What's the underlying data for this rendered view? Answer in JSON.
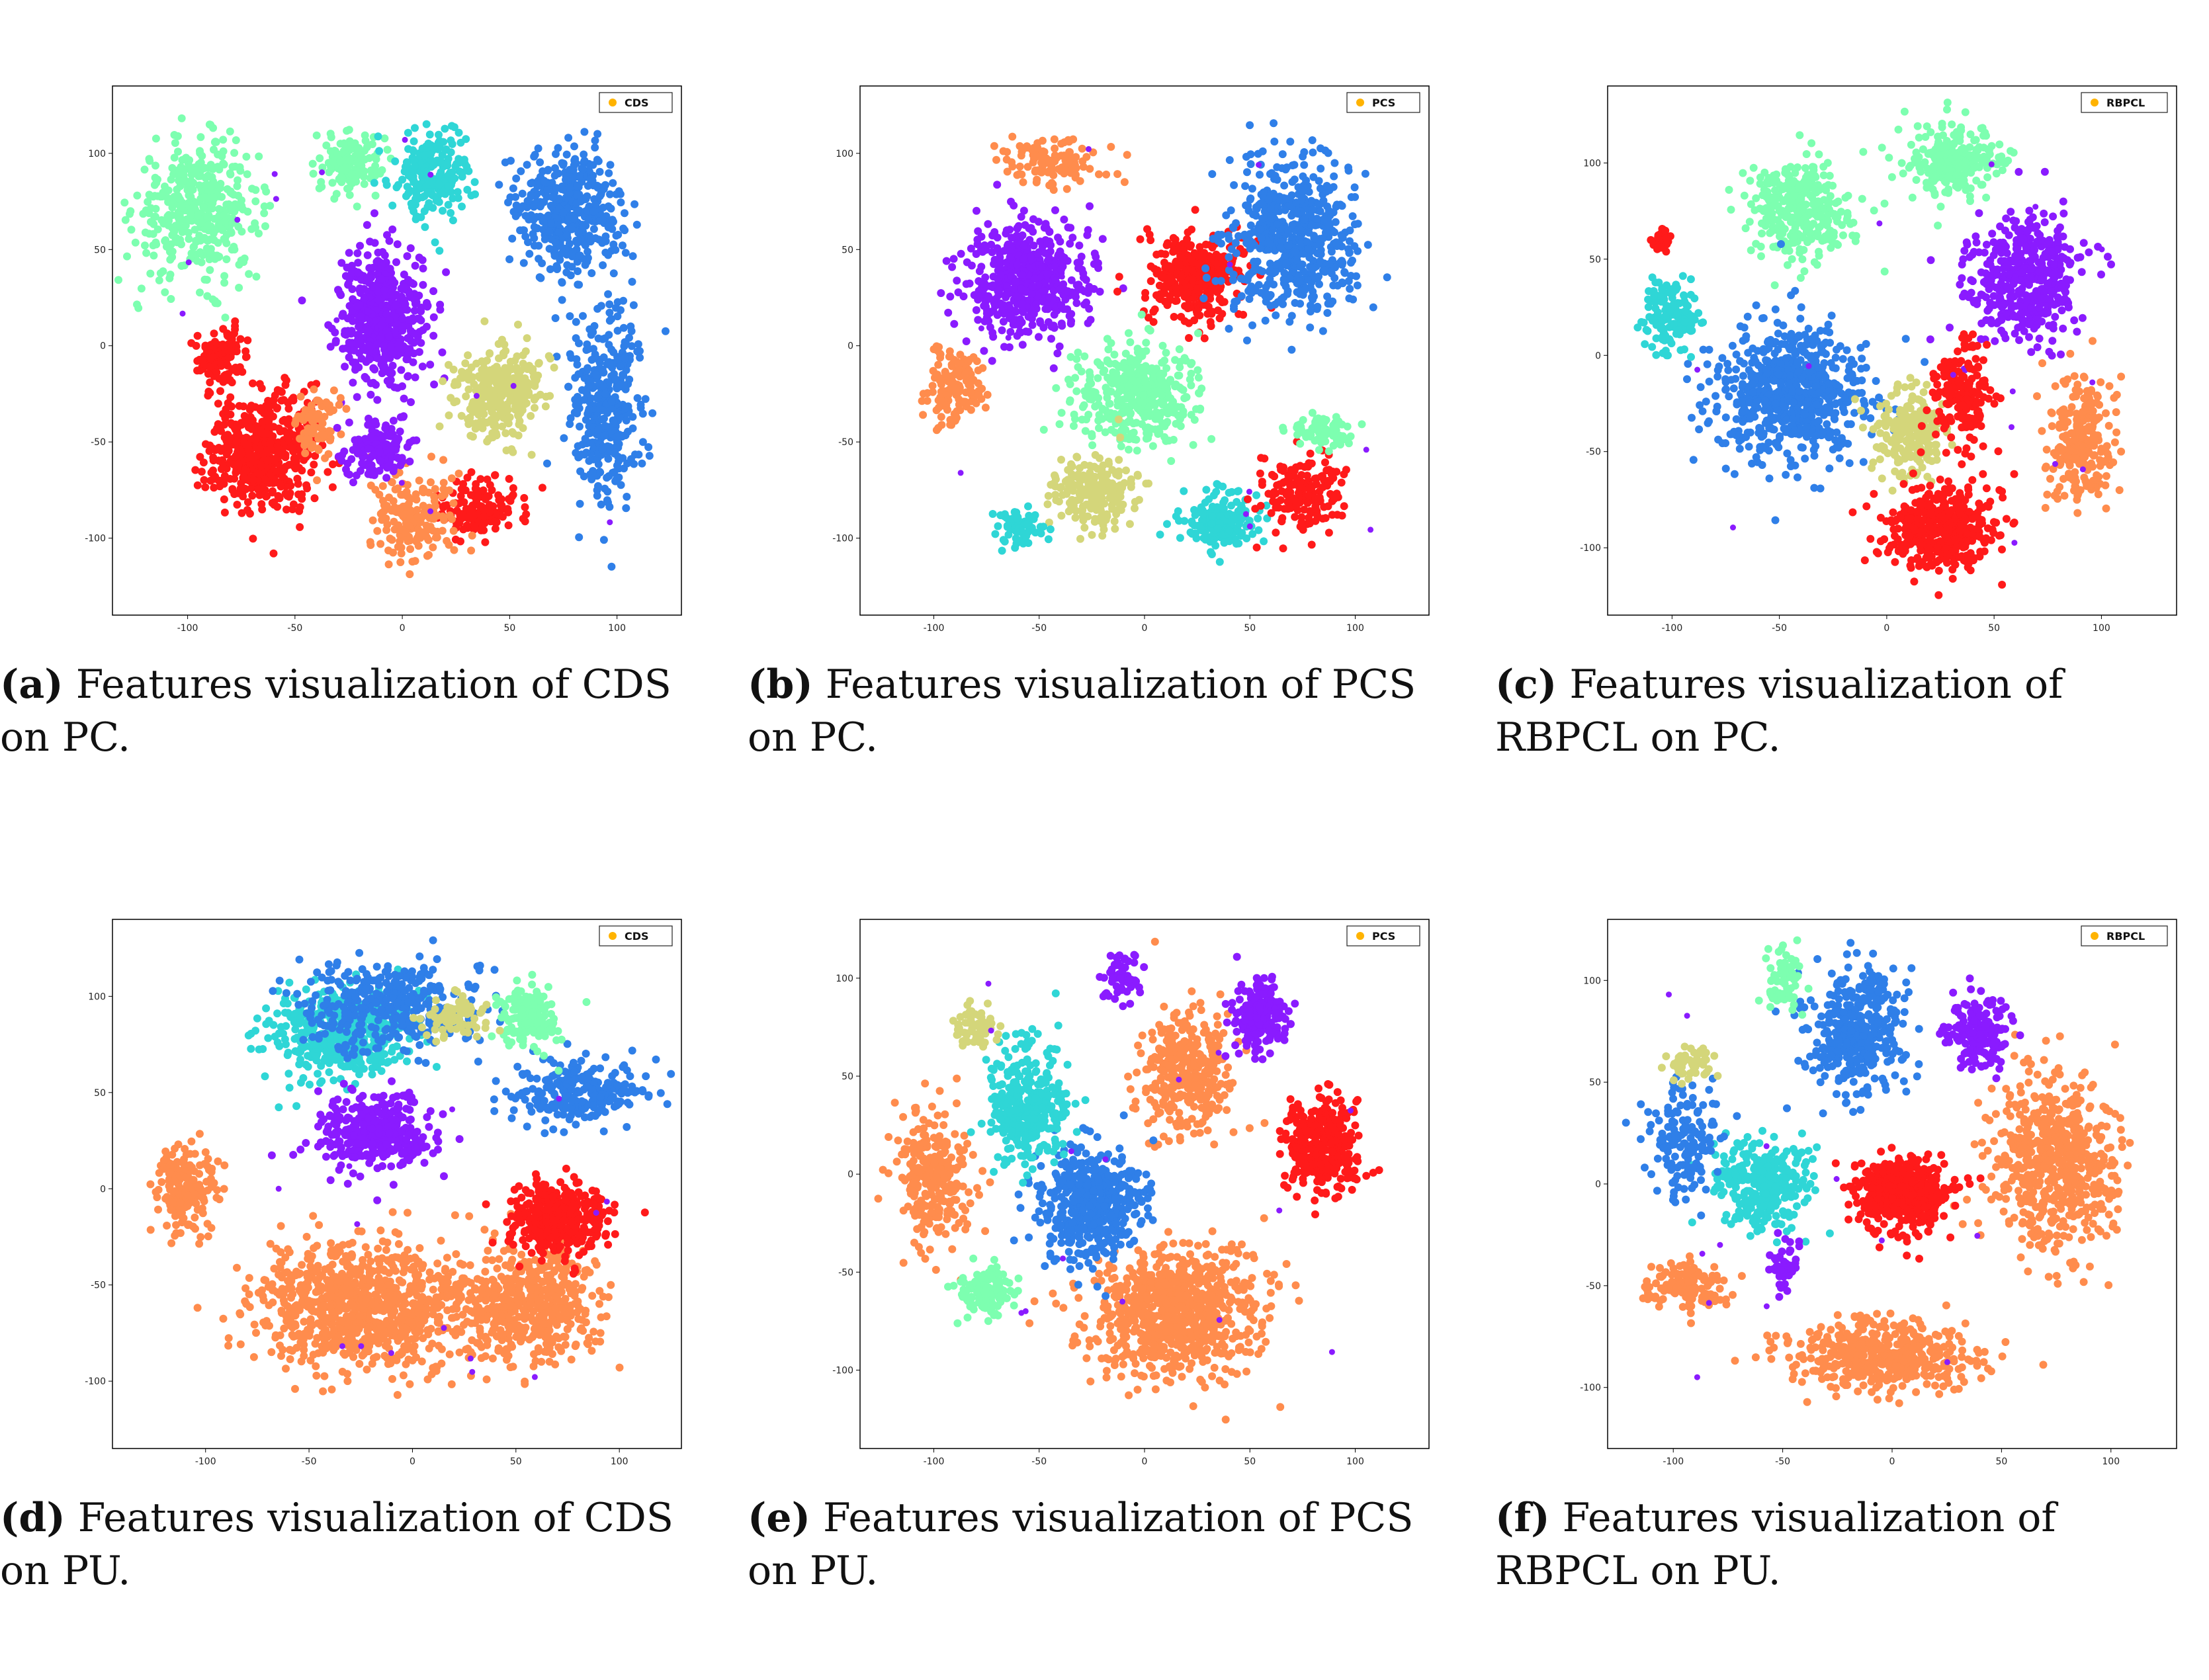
{
  "figure": {
    "panels": [
      {
        "tag": "a",
        "method": "CDS",
        "dataset": "PC",
        "caption_tag": "(a)",
        "caption_text": " Features visualization of CDS on PC."
      },
      {
        "tag": "b",
        "method": "PCS",
        "dataset": "PC",
        "caption_tag": "(b)",
        "caption_text": " Features visualization of PCS on PC."
      },
      {
        "tag": "c",
        "method": "RBPCL",
        "dataset": "PC",
        "caption_tag": "(c)",
        "caption_text": " Features visualization of RBPCL on PC."
      },
      {
        "tag": "d",
        "method": "CDS",
        "dataset": "PU",
        "caption_tag": "(d)",
        "caption_text": " Features visualization of CDS on PU."
      },
      {
        "tag": "e",
        "method": "PCS",
        "dataset": "PU",
        "caption_tag": "(e)",
        "caption_text": " Features visualization of PCS on PU."
      },
      {
        "tag": "f",
        "method": "RBPCL",
        "dataset": "PU",
        "caption_tag": "(f)",
        "caption_text": " Features visualization of RBPCL on PU."
      }
    ]
  },
  "colors": {
    "red": "#ff1a1a",
    "orange": "#ff8c4d",
    "violet": "#8a1bff",
    "blue": "#2f7fe8",
    "cyan": "#2fd6d6",
    "aqua": "#7dffb0",
    "khaki": "#d4d67a",
    "legend_dot": "#ffb300"
  },
  "chart_data": [
    {
      "type": "scatter",
      "subtype": "t-SNE embedding",
      "legend": "CDS",
      "xlim": [
        -135,
        130
      ],
      "ylim": [
        -140,
        135
      ],
      "xticks": [
        -100,
        -50,
        0,
        50,
        100
      ],
      "yticks": [
        -100,
        -50,
        0,
        50,
        100
      ],
      "clusters": [
        {
          "color": "aqua",
          "cx": -95,
          "cy": 70,
          "sx": 26,
          "sy": 32,
          "n": 420
        },
        {
          "color": "aqua",
          "cx": -25,
          "cy": 95,
          "sx": 14,
          "sy": 14,
          "n": 140
        },
        {
          "color": "cyan",
          "cx": 15,
          "cy": 90,
          "sx": 16,
          "sy": 22,
          "n": 220
        },
        {
          "color": "blue",
          "cx": 78,
          "cy": 70,
          "sx": 22,
          "sy": 28,
          "n": 430
        },
        {
          "color": "blue",
          "cx": 95,
          "cy": -30,
          "sx": 16,
          "sy": 48,
          "n": 360
        },
        {
          "color": "violet",
          "cx": -10,
          "cy": 15,
          "sx": 18,
          "sy": 30,
          "n": 520
        },
        {
          "color": "khaki",
          "cx": 45,
          "cy": -25,
          "sx": 18,
          "sy": 22,
          "n": 300
        },
        {
          "color": "red",
          "cx": -65,
          "cy": -55,
          "sx": 22,
          "sy": 28,
          "n": 520
        },
        {
          "color": "red",
          "cx": -85,
          "cy": -5,
          "sx": 12,
          "sy": 12,
          "n": 120
        },
        {
          "color": "red",
          "cx": 35,
          "cy": -85,
          "sx": 18,
          "sy": 14,
          "n": 140
        },
        {
          "color": "orange",
          "cx": 5,
          "cy": -90,
          "sx": 18,
          "sy": 20,
          "n": 180
        },
        {
          "color": "orange",
          "cx": -40,
          "cy": -40,
          "sx": 10,
          "sy": 14,
          "n": 80
        },
        {
          "color": "violet",
          "cx": -10,
          "cy": -55,
          "sx": 14,
          "sy": 14,
          "n": 150
        }
      ]
    },
    {
      "type": "scatter",
      "subtype": "t-SNE embedding",
      "legend": "PCS",
      "xlim": [
        -135,
        135
      ],
      "ylim": [
        -140,
        135
      ],
      "xticks": [
        -100,
        -50,
        0,
        50,
        100
      ],
      "yticks": [
        -100,
        -50,
        0,
        50,
        100
      ],
      "clusters": [
        {
          "color": "violet",
          "cx": -55,
          "cy": 35,
          "sx": 26,
          "sy": 28,
          "n": 520
        },
        {
          "color": "red",
          "cx": 25,
          "cy": 35,
          "sx": 20,
          "sy": 20,
          "n": 360
        },
        {
          "color": "blue",
          "cx": 70,
          "cy": 55,
          "sx": 28,
          "sy": 38,
          "n": 560
        },
        {
          "color": "aqua",
          "cx": -5,
          "cy": -25,
          "sx": 26,
          "sy": 22,
          "n": 420
        },
        {
          "color": "khaki",
          "cx": -25,
          "cy": -75,
          "sx": 18,
          "sy": 16,
          "n": 220
        },
        {
          "color": "cyan",
          "cx": 35,
          "cy": -90,
          "sx": 16,
          "sy": 14,
          "n": 170
        },
        {
          "color": "cyan",
          "cx": -60,
          "cy": -95,
          "sx": 10,
          "sy": 8,
          "n": 70
        },
        {
          "color": "red",
          "cx": 75,
          "cy": -75,
          "sx": 18,
          "sy": 16,
          "n": 180
        },
        {
          "color": "orange",
          "cx": -90,
          "cy": -20,
          "sx": 12,
          "sy": 22,
          "n": 140
        },
        {
          "color": "orange",
          "cx": -45,
          "cy": 95,
          "sx": 20,
          "sy": 12,
          "n": 120
        },
        {
          "color": "aqua",
          "cx": 85,
          "cy": -45,
          "sx": 14,
          "sy": 8,
          "n": 80
        }
      ]
    },
    {
      "type": "scatter",
      "subtype": "t-SNE embedding",
      "legend": "RBPCL",
      "xlim": [
        -130,
        135
      ],
      "ylim": [
        -135,
        140
      ],
      "xticks": [
        -100,
        -50,
        0,
        50,
        100
      ],
      "yticks": [
        -100,
        -50,
        0,
        50,
        100
      ],
      "clusters": [
        {
          "color": "aqua",
          "cx": -40,
          "cy": 75,
          "sx": 22,
          "sy": 24,
          "n": 330
        },
        {
          "color": "aqua",
          "cx": 30,
          "cy": 100,
          "sx": 20,
          "sy": 18,
          "n": 250
        },
        {
          "color": "violet",
          "cx": 65,
          "cy": 40,
          "sx": 24,
          "sy": 30,
          "n": 460
        },
        {
          "color": "blue",
          "cx": -45,
          "cy": -20,
          "sx": 32,
          "sy": 32,
          "n": 680
        },
        {
          "color": "cyan",
          "cx": -100,
          "cy": 20,
          "sx": 12,
          "sy": 18,
          "n": 140
        },
        {
          "color": "khaki",
          "cx": 10,
          "cy": -40,
          "sx": 14,
          "sy": 20,
          "n": 220
        },
        {
          "color": "red",
          "cx": 35,
          "cy": -20,
          "sx": 12,
          "sy": 24,
          "n": 180
        },
        {
          "color": "red",
          "cx": 25,
          "cy": -90,
          "sx": 24,
          "sy": 20,
          "n": 420
        },
        {
          "color": "orange",
          "cx": 90,
          "cy": -45,
          "sx": 14,
          "sy": 32,
          "n": 260
        },
        {
          "color": "red",
          "cx": -105,
          "cy": 60,
          "sx": 4,
          "sy": 5,
          "n": 40
        }
      ]
    },
    {
      "type": "scatter",
      "subtype": "t-SNE embedding",
      "legend": "CDS",
      "xlim": [
        -145,
        130
      ],
      "ylim": [
        -135,
        140
      ],
      "xticks": [
        -100,
        -50,
        0,
        50,
        100
      ],
      "yticks": [
        -100,
        -50,
        0,
        50,
        100
      ],
      "clusters": [
        {
          "color": "orange",
          "cx": -25,
          "cy": -60,
          "sx": 45,
          "sy": 30,
          "n": 900
        },
        {
          "color": "orange",
          "cx": 55,
          "cy": -60,
          "sx": 30,
          "sy": 28,
          "n": 500
        },
        {
          "color": "orange",
          "cx": -110,
          "cy": 0,
          "sx": 14,
          "sy": 22,
          "n": 180
        },
        {
          "color": "red",
          "cx": 70,
          "cy": -15,
          "sx": 22,
          "sy": 16,
          "n": 380
        },
        {
          "color": "cyan",
          "cx": -35,
          "cy": 80,
          "sx": 30,
          "sy": 22,
          "n": 420
        },
        {
          "color": "violet",
          "cx": -20,
          "cy": 30,
          "sx": 26,
          "sy": 18,
          "n": 320
        },
        {
          "color": "blue",
          "cx": -10,
          "cy": 95,
          "sx": 40,
          "sy": 22,
          "n": 380
        },
        {
          "color": "blue",
          "cx": 80,
          "cy": 50,
          "sx": 30,
          "sy": 14,
          "n": 260
        },
        {
          "color": "aqua",
          "cx": 55,
          "cy": 90,
          "sx": 14,
          "sy": 16,
          "n": 160
        },
        {
          "color": "khaki",
          "cx": 20,
          "cy": 90,
          "sx": 14,
          "sy": 10,
          "n": 80
        }
      ]
    },
    {
      "type": "scatter",
      "subtype": "t-SNE embedding",
      "legend": "PCS",
      "xlim": [
        -135,
        135
      ],
      "ylim": [
        -140,
        130
      ],
      "xticks": [
        -100,
        -50,
        0,
        50,
        100
      ],
      "yticks": [
        -100,
        -50,
        0,
        50,
        100
      ],
      "clusters": [
        {
          "color": "orange",
          "cx": 15,
          "cy": -70,
          "sx": 36,
          "sy": 30,
          "n": 800
        },
        {
          "color": "orange",
          "cx": 20,
          "cy": 50,
          "sx": 20,
          "sy": 28,
          "n": 340
        },
        {
          "color": "orange",
          "cx": -100,
          "cy": 0,
          "sx": 16,
          "sy": 30,
          "n": 260
        },
        {
          "color": "blue",
          "cx": -25,
          "cy": -15,
          "sx": 22,
          "sy": 26,
          "n": 480
        },
        {
          "color": "cyan",
          "cx": -55,
          "cy": 35,
          "sx": 16,
          "sy": 28,
          "n": 340
        },
        {
          "color": "red",
          "cx": 85,
          "cy": 15,
          "sx": 16,
          "sy": 22,
          "n": 360
        },
        {
          "color": "violet",
          "cx": 55,
          "cy": 80,
          "sx": 12,
          "sy": 18,
          "n": 200
        },
        {
          "color": "violet",
          "cx": -10,
          "cy": 100,
          "sx": 8,
          "sy": 10,
          "n": 60
        },
        {
          "color": "aqua",
          "cx": -75,
          "cy": -60,
          "sx": 12,
          "sy": 12,
          "n": 120
        },
        {
          "color": "khaki",
          "cx": -80,
          "cy": 75,
          "sx": 10,
          "sy": 10,
          "n": 60
        }
      ]
    },
    {
      "type": "scatter",
      "subtype": "t-SNE embedding",
      "legend": "RBPCL",
      "xlim": [
        -130,
        130
      ],
      "ylim": [
        -130,
        130
      ],
      "xticks": [
        -100,
        -50,
        0,
        50,
        100
      ],
      "yticks": [
        -100,
        -50,
        0,
        50,
        100
      ],
      "clusters": [
        {
          "color": "orange",
          "cx": 75,
          "cy": 10,
          "sx": 26,
          "sy": 40,
          "n": 620
        },
        {
          "color": "orange",
          "cx": -5,
          "cy": -85,
          "sx": 36,
          "sy": 16,
          "n": 460
        },
        {
          "color": "orange",
          "cx": -95,
          "cy": -50,
          "sx": 18,
          "sy": 10,
          "n": 140
        },
        {
          "color": "red",
          "cx": 5,
          "cy": -5,
          "sx": 20,
          "sy": 16,
          "n": 440
        },
        {
          "color": "cyan",
          "cx": -60,
          "cy": 0,
          "sx": 20,
          "sy": 18,
          "n": 300
        },
        {
          "color": "blue",
          "cx": -15,
          "cy": 75,
          "sx": 20,
          "sy": 28,
          "n": 380
        },
        {
          "color": "blue",
          "cx": -95,
          "cy": 20,
          "sx": 14,
          "sy": 24,
          "n": 160
        },
        {
          "color": "violet",
          "cx": 40,
          "cy": 75,
          "sx": 12,
          "sy": 16,
          "n": 180
        },
        {
          "color": "violet",
          "cx": -50,
          "cy": -40,
          "sx": 6,
          "sy": 10,
          "n": 50
        },
        {
          "color": "aqua",
          "cx": -50,
          "cy": 100,
          "sx": 8,
          "sy": 12,
          "n": 70
        },
        {
          "color": "khaki",
          "cx": -90,
          "cy": 60,
          "sx": 10,
          "sy": 8,
          "n": 50
        }
      ]
    }
  ]
}
